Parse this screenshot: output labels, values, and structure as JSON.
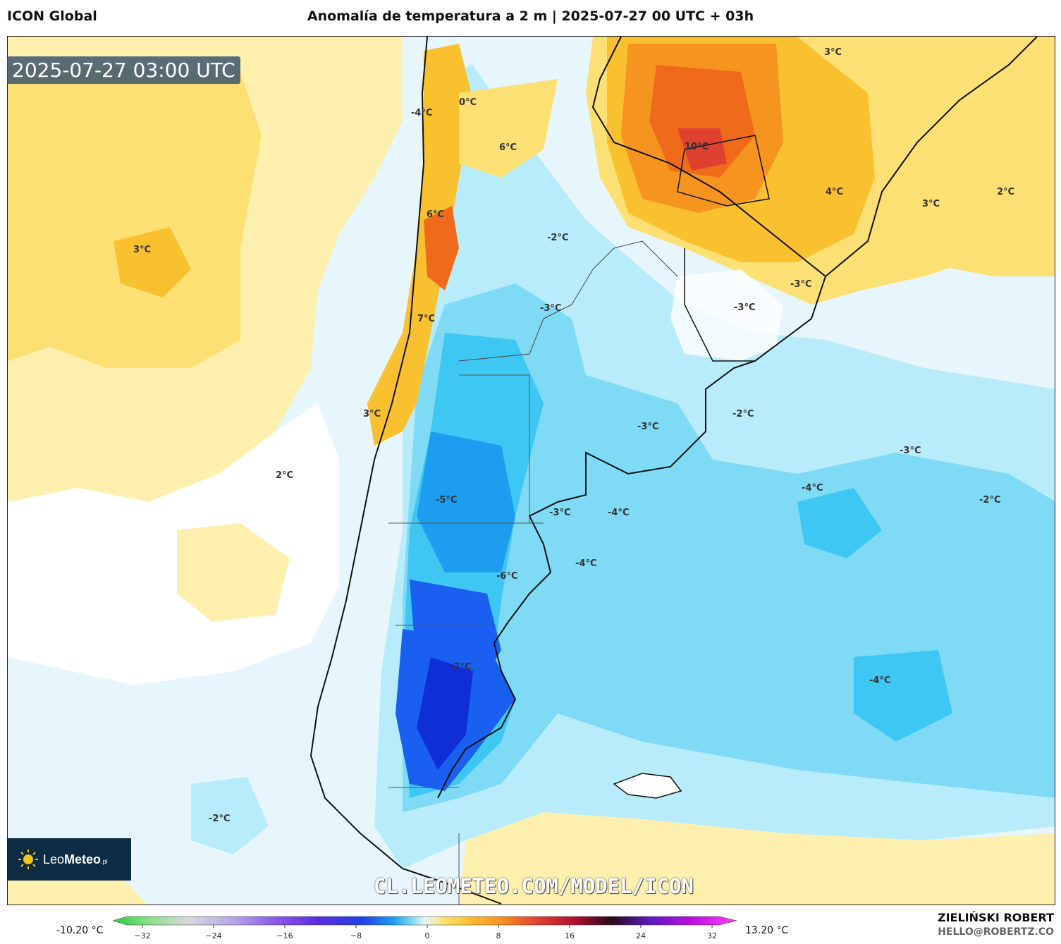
{
  "header": {
    "model": "ICON Global",
    "title": "Anomalía de temperatura a 2 m | 2025-07-27 00 UTC + 03h"
  },
  "map": {
    "timestamp": "2025-07-27 03:00 UTC",
    "watermark": "CL.LEOMETEO.COM/MODEL/ICON",
    "labels": [
      "3°C",
      "2°C",
      "3°C",
      "2°C",
      "3°C",
      "-4°C",
      "0°C",
      "6°C",
      "6°C",
      "7°C",
      "3°C",
      "10°C",
      "4°C",
      "-2°C",
      "-3°C",
      "-3°C",
      "-3°C",
      "-2°C",
      "-3°C",
      "-3°C",
      "-4°C",
      "-2°C",
      "-5°C",
      "-3°C",
      "-4°C",
      "-4°C",
      "-6°C",
      "-7°C",
      "-4°C",
      "-2°C"
    ],
    "colors": {
      "warm_light": "#fdf0ae",
      "warm": "#fde073",
      "warm_mid": "#f9c02f",
      "orange": "#f59520",
      "orange_deep": "#ef6a1a",
      "red": "#e04030",
      "cold_pale": "#e6f6fc",
      "cold_light": "#b8ecfa",
      "cold": "#7fdaf5",
      "cold_mid": "#3fc7f3",
      "blue": "#1e9cf0",
      "blue_deep": "#1b5ff0",
      "blue_dark": "#0f2fd6"
    }
  },
  "logo": {
    "brand": "Leo",
    "brand_bold": "Meteo",
    "suffix": ".pl"
  },
  "colorbar": {
    "min_label": "-10.20 °C",
    "max_label": "13.20 °C",
    "ticks": [
      "−32",
      "−24",
      "−16",
      "−8",
      "0",
      "8",
      "16",
      "24",
      "32"
    ],
    "stops": [
      "#2ecc40",
      "#8be08b",
      "#d8d8d8",
      "#b8a8e8",
      "#8a5ae8",
      "#5a2ae0",
      "#2040e8",
      "#1e9cf0",
      "#7fdaf5",
      "#e6f6fc",
      "#fde073",
      "#f9c02f",
      "#f59520",
      "#e04030",
      "#b01030",
      "#2a0a1a",
      "#5a1ac0",
      "#c010e0",
      "#ff40ff"
    ]
  },
  "credits": {
    "author": "ZIELIŃSKI ROBERT",
    "email": "HELLO@ROBERTZ.CO"
  }
}
